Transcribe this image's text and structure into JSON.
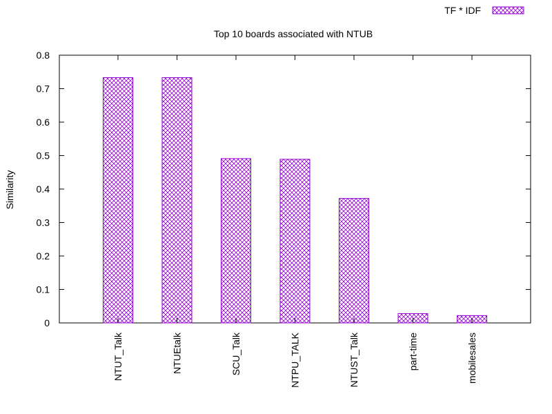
{
  "chart_data": {
    "type": "bar",
    "title": "Top 10 boards associated with NTUB",
    "xlabel": "",
    "ylabel": "Similarity",
    "ylim": [
      0,
      0.8
    ],
    "yticks": [
      "0",
      "0.1",
      "0.2",
      "0.3",
      "0.4",
      "0.5",
      "0.6",
      "0.7",
      "0.8"
    ],
    "categories": [
      "NTUT_Talk",
      "NTUEtalk",
      "SCU_Talk",
      "NTPU_TALK",
      "NTUST_Talk",
      "part-time",
      "mobilesales"
    ],
    "series": [
      {
        "name": "TF * IDF",
        "values": [
          0.733,
          0.733,
          0.491,
          0.489,
          0.372,
          0.028,
          0.022
        ]
      }
    ],
    "grid": false,
    "legend_position": "top-right",
    "colors": {
      "bar_stroke": "#9400d3",
      "bar_pattern": "#9400d3",
      "axis": "#000000"
    }
  }
}
